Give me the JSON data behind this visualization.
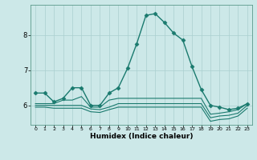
{
  "title": "",
  "xlabel": "Humidex (Indice chaleur)",
  "ylabel": "",
  "bg_color": "#cce8e8",
  "line_color": "#1a7a6e",
  "grid_color": "#aacfcf",
  "xlim": [
    -0.5,
    23.5
  ],
  "ylim": [
    5.45,
    8.85
  ],
  "yticks": [
    6,
    7,
    8
  ],
  "xticks": [
    0,
    1,
    2,
    3,
    4,
    5,
    6,
    7,
    8,
    9,
    10,
    11,
    12,
    13,
    14,
    15,
    16,
    17,
    18,
    19,
    20,
    21,
    22,
    23
  ],
  "lines": [
    {
      "x": [
        0,
        1,
        2,
        3,
        4,
        5,
        6,
        7,
        8,
        9,
        10,
        11,
        12,
        13,
        14,
        15,
        16,
        17,
        18,
        19,
        20,
        21,
        22,
        23
      ],
      "y": [
        6.35,
        6.35,
        6.1,
        6.2,
        6.5,
        6.5,
        6.0,
        6.0,
        6.35,
        6.5,
        7.05,
        7.75,
        8.55,
        8.6,
        8.35,
        8.05,
        7.85,
        7.1,
        6.45,
        6.0,
        5.95,
        5.88,
        5.92,
        6.05
      ],
      "marker": "D",
      "ms": 2.5,
      "lw": 1.0
    },
    {
      "x": [
        0,
        1,
        2,
        3,
        4,
        5,
        6,
        7,
        8,
        9,
        10,
        11,
        12,
        13,
        14,
        15,
        16,
        17,
        18,
        19,
        20,
        21,
        22,
        23
      ],
      "y": [
        6.05,
        6.05,
        6.05,
        6.15,
        6.15,
        6.25,
        5.95,
        5.95,
        6.15,
        6.2,
        6.2,
        6.2,
        6.2,
        6.2,
        6.2,
        6.2,
        6.2,
        6.2,
        6.2,
        5.75,
        5.78,
        5.82,
        5.88,
        6.05
      ],
      "marker": null,
      "ms": 0,
      "lw": 0.8
    },
    {
      "x": [
        0,
        1,
        2,
        3,
        4,
        5,
        6,
        7,
        8,
        9,
        10,
        11,
        12,
        13,
        14,
        15,
        16,
        17,
        18,
        19,
        20,
        21,
        22,
        23
      ],
      "y": [
        6.0,
        6.0,
        6.0,
        6.0,
        6.0,
        6.0,
        5.9,
        5.88,
        5.95,
        6.05,
        6.05,
        6.05,
        6.05,
        6.05,
        6.05,
        6.05,
        6.05,
        6.05,
        6.05,
        5.65,
        5.7,
        5.72,
        5.78,
        6.0
      ],
      "marker": null,
      "ms": 0,
      "lw": 0.8
    },
    {
      "x": [
        0,
        1,
        2,
        3,
        4,
        5,
        6,
        7,
        8,
        9,
        10,
        11,
        12,
        13,
        14,
        15,
        16,
        17,
        18,
        19,
        20,
        21,
        22,
        23
      ],
      "y": [
        5.95,
        5.95,
        5.92,
        5.92,
        5.92,
        5.92,
        5.82,
        5.8,
        5.88,
        5.95,
        5.95,
        5.95,
        5.95,
        5.95,
        5.95,
        5.95,
        5.95,
        5.95,
        5.95,
        5.55,
        5.6,
        5.62,
        5.7,
        5.92
      ],
      "marker": null,
      "ms": 0,
      "lw": 0.8
    }
  ]
}
